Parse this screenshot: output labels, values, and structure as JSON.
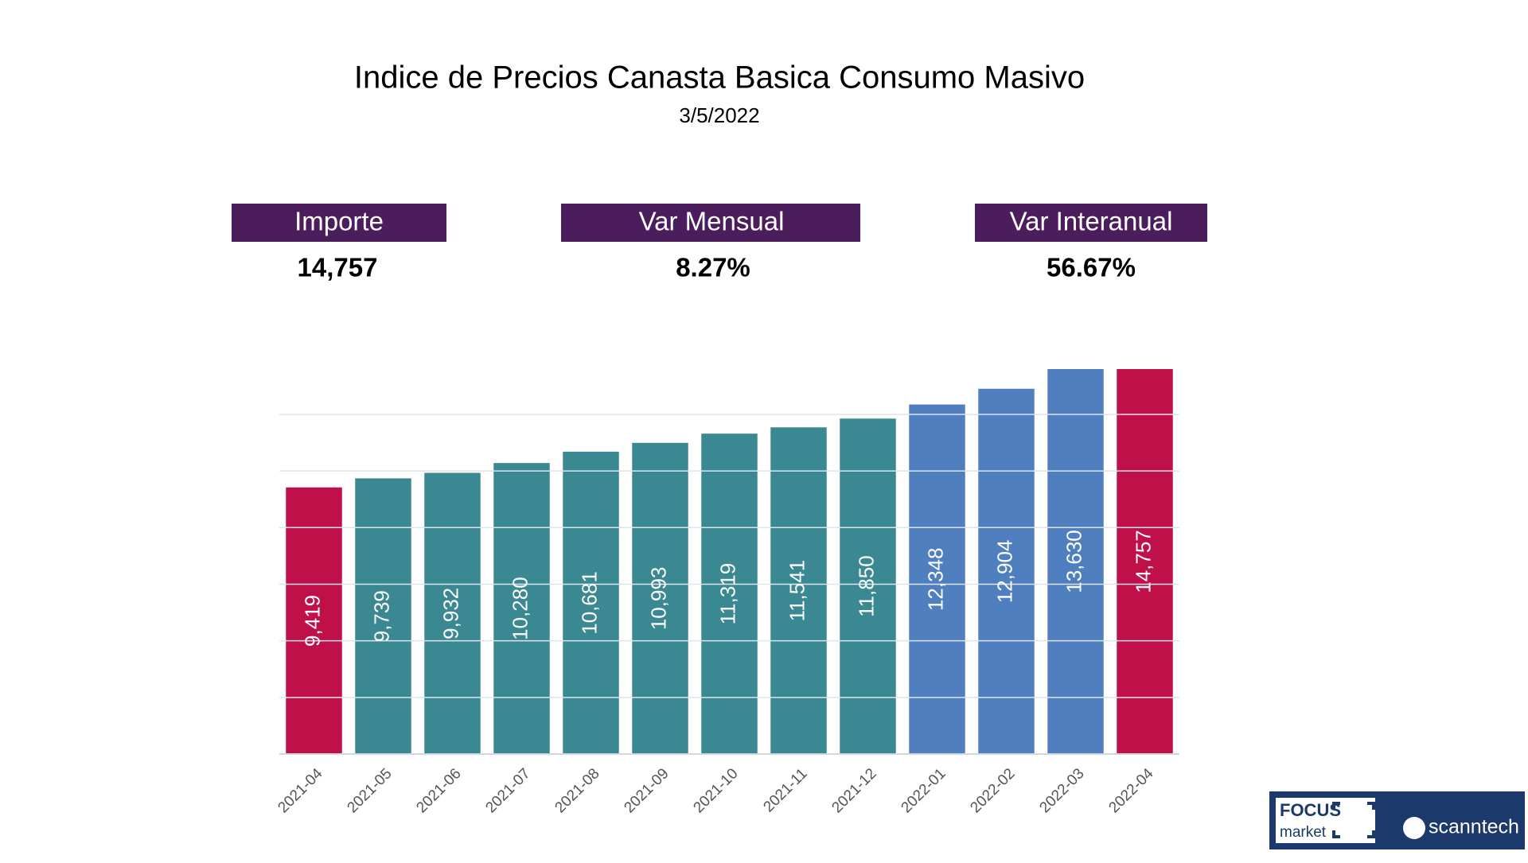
{
  "header": {
    "title": "Indice de Precios Canasta Basica Consumo Masivo",
    "subtitle": "3/5/2022"
  },
  "kpis": [
    {
      "label": "Importe",
      "value": "14,757"
    },
    {
      "label": "Var Mensual",
      "value": "8.27%"
    },
    {
      "label": "Var Interanual",
      "value": "56.67%"
    }
  ],
  "chart_data": {
    "type": "bar",
    "categories": [
      "2021-04",
      "2021-05",
      "2021-06",
      "2021-07",
      "2021-08",
      "2021-09",
      "2021-10",
      "2021-11",
      "2021-12",
      "2022-01",
      "2022-02",
      "2022-03",
      "2022-04"
    ],
    "values": [
      9419,
      9739,
      9932,
      10280,
      10681,
      10993,
      11319,
      11541,
      11850,
      12348,
      12904,
      13630,
      14757
    ],
    "value_labels": [
      "9,419",
      "9,739",
      "9,932",
      "10,280",
      "10,681",
      "10,993",
      "11,319",
      "11,541",
      "11,850",
      "12,348",
      "12,904",
      "13,630",
      "14,757"
    ],
    "colors": [
      "#c0104a",
      "#3a8891",
      "#3a8891",
      "#3a8891",
      "#3a8891",
      "#3a8891",
      "#3a8891",
      "#3a8891",
      "#3a8891",
      "#4f7fbf",
      "#4f7fbf",
      "#4f7fbf",
      "#c0104a"
    ],
    "ylim": [
      0,
      13600
    ],
    "yticks": [
      0,
      2000,
      4000,
      6000,
      8000,
      10000,
      12000
    ],
    "grid": true
  },
  "logo": {
    "brand": "FOCUS",
    "sub": "market",
    "partner": "scanntech"
  }
}
